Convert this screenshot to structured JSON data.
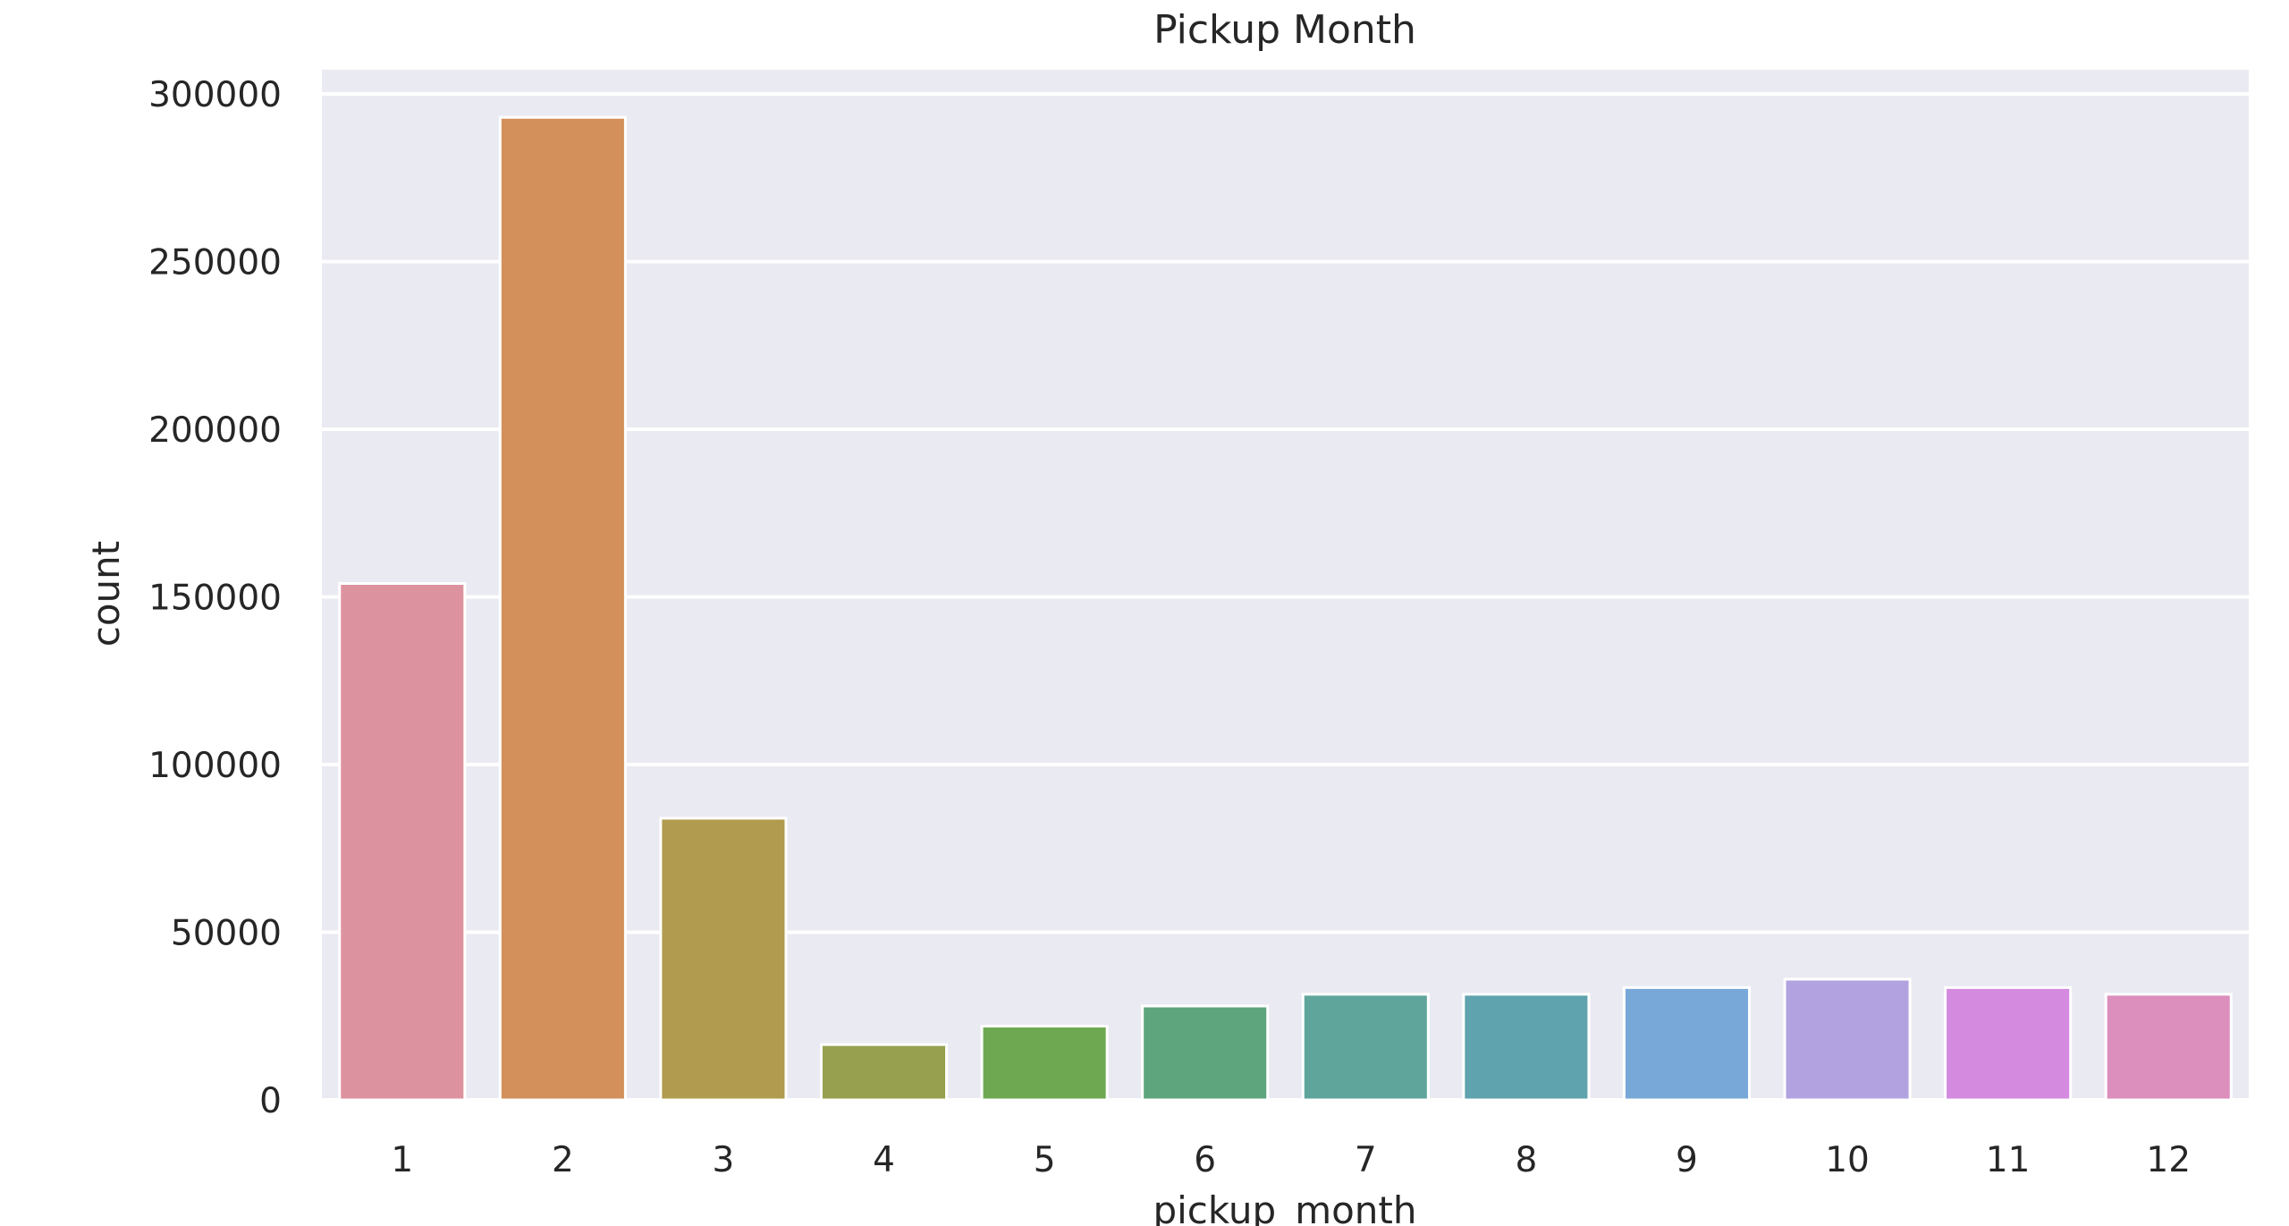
{
  "chart_data": {
    "type": "bar",
    "title": "Pickup Month",
    "xlabel": "pickup_month",
    "ylabel": "count",
    "categories": [
      "1",
      "2",
      "3",
      "4",
      "5",
      "6",
      "7",
      "8",
      "9",
      "10",
      "11",
      "12"
    ],
    "values": [
      154000,
      293000,
      84000,
      16500,
      22000,
      28000,
      31500,
      31500,
      33500,
      36000,
      33500,
      31500
    ],
    "colors": [
      "#dd939f",
      "#d3905a",
      "#b09b4e",
      "#96a04e",
      "#6ea952",
      "#5ea57d",
      "#5fa59c",
      "#5ea3ae",
      "#77a8d8",
      "#b2a3e0",
      "#d38adf",
      "#dc8ebc"
    ],
    "ylim": [
      0,
      300000
    ],
    "yticks": [
      0,
      50000,
      100000,
      150000,
      200000,
      250000,
      300000
    ],
    "ytick_labels": [
      "0",
      "50000",
      "100000",
      "150000",
      "200000",
      "250000",
      "300000"
    ],
    "grid": true,
    "background": "#eaeaf2",
    "legend": "none"
  }
}
